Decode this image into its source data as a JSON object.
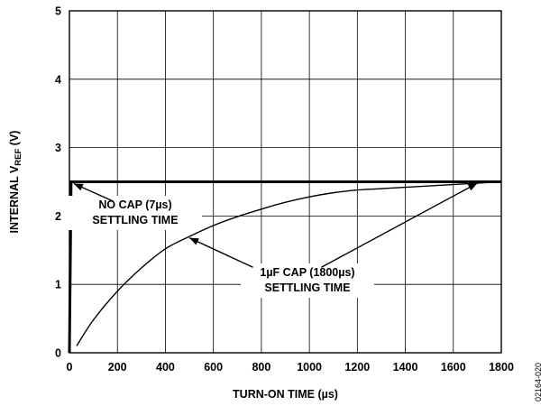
{
  "chart_data": {
    "type": "line",
    "xlabel": "TURN-ON TIME (µs)",
    "ylabel_main": "INTERNAL V",
    "ylabel_sub": "REF",
    "ylabel_unit": " (V)",
    "xlim": [
      0,
      1800
    ],
    "ylim": [
      0,
      5
    ],
    "x_ticks": [
      0,
      200,
      400,
      600,
      800,
      1000,
      1200,
      1400,
      1600,
      1800
    ],
    "y_ticks": [
      0,
      1,
      2,
      3,
      4,
      5
    ],
    "grid": true,
    "series": [
      {
        "values_x": [
          0,
          7,
          1800
        ],
        "values_y": [
          0,
          2.5,
          2.5
        ]
      },
      {
        "values_x": [
          30,
          100,
          200,
          300,
          400,
          500,
          600,
          700,
          800,
          900,
          1000,
          1100,
          1200,
          1300,
          1400,
          1500,
          1600,
          1700,
          1800
        ],
        "values_y": [
          0.1,
          0.48,
          0.9,
          1.24,
          1.52,
          1.7,
          1.86,
          1.99,
          2.1,
          2.2,
          2.28,
          2.34,
          2.38,
          2.4,
          2.42,
          2.44,
          2.46,
          2.48,
          2.5
        ]
      }
    ],
    "annotations": [
      {
        "lines": [
          "NO CAP (7µs)",
          "SETTLING TIME"
        ],
        "point": [
          7,
          2.5
        ]
      },
      {
        "lines": [
          "1µF CAP (1800µs)",
          "SETTLING TIME"
        ],
        "point": [
          500,
          1.68
        ],
        "point2": [
          1700,
          2.48
        ]
      }
    ],
    "figure_code": "02164-020"
  }
}
